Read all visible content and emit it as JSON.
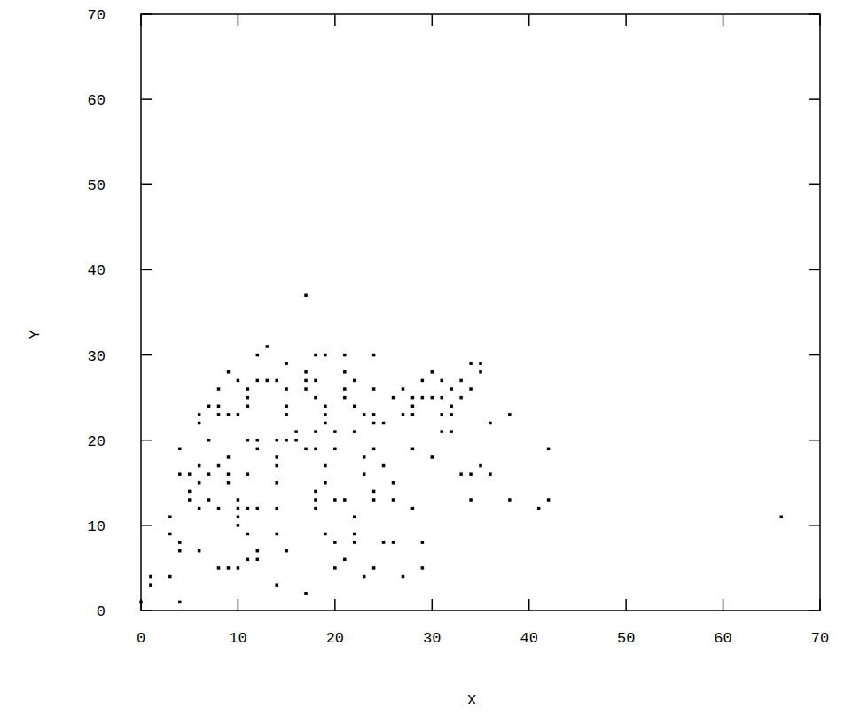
{
  "chart_data": {
    "type": "scatter",
    "xlabel": "X",
    "ylabel": "Y",
    "color": "#000000",
    "marker": "square",
    "x": [
      0,
      1,
      1,
      3,
      3,
      3,
      4,
      4,
      4,
      4,
      4,
      5,
      5,
      5,
      6,
      6,
      6,
      6,
      6,
      6,
      7,
      7,
      7,
      7,
      8,
      8,
      8,
      8,
      8,
      8,
      9,
      9,
      9,
      9,
      9,
      9,
      10,
      10,
      10,
      10,
      10,
      10,
      10,
      11,
      11,
      11,
      11,
      11,
      11,
      11,
      11,
      12,
      12,
      12,
      12,
      12,
      12,
      12,
      13,
      13,
      14,
      14,
      14,
      14,
      14,
      14,
      14,
      14,
      15,
      15,
      15,
      15,
      15,
      15,
      16,
      16,
      17,
      17,
      17,
      17,
      17,
      17,
      18,
      18,
      18,
      18,
      18,
      18,
      18,
      18,
      19,
      19,
      19,
      19,
      19,
      19,
      19,
      20,
      20,
      20,
      20,
      20,
      21,
      21,
      21,
      21,
      21,
      21,
      22,
      22,
      22,
      22,
      22,
      22,
      23,
      23,
      23,
      23,
      24,
      24,
      24,
      24,
      24,
      24,
      24,
      24,
      25,
      25,
      25,
      26,
      26,
      26,
      26,
      27,
      27,
      27,
      28,
      28,
      28,
      28,
      28,
      29,
      29,
      29,
      29,
      30,
      30,
      30,
      31,
      31,
      31,
      31,
      32,
      32,
      32,
      32,
      33,
      33,
      33,
      34,
      34,
      34,
      34,
      35,
      35,
      35,
      36,
      36,
      38,
      38,
      41,
      42,
      42,
      66
    ],
    "values": [
      1,
      4,
      3,
      11,
      9,
      4,
      19,
      16,
      8,
      7,
      1,
      16,
      14,
      13,
      23,
      22,
      17,
      15,
      12,
      7,
      24,
      20,
      16,
      13,
      26,
      24,
      23,
      17,
      12,
      5,
      28,
      23,
      18,
      16,
      15,
      5,
      27,
      23,
      13,
      11,
      10,
      5,
      12,
      26,
      25,
      24,
      20,
      16,
      12,
      9,
      6,
      30,
      27,
      20,
      19,
      12,
      7,
      6,
      31,
      27,
      27,
      20,
      18,
      17,
      15,
      12,
      9,
      3,
      29,
      26,
      24,
      23,
      20,
      7,
      21,
      20,
      37,
      28,
      27,
      26,
      19,
      2,
      30,
      27,
      25,
      21,
      19,
      14,
      13,
      12,
      30,
      24,
      23,
      22,
      17,
      15,
      9,
      21,
      19,
      13,
      8,
      5,
      30,
      28,
      26,
      25,
      13,
      6,
      27,
      24,
      21,
      11,
      9,
      8,
      23,
      18,
      16,
      4,
      30,
      26,
      23,
      22,
      19,
      14,
      13,
      5,
      22,
      17,
      8,
      25,
      15,
      13,
      8,
      26,
      23,
      4,
      24,
      23,
      25,
      19,
      12,
      27,
      25,
      8,
      5,
      28,
      25,
      18,
      27,
      25,
      23,
      21,
      26,
      24,
      23,
      21,
      27,
      25,
      16,
      29,
      26,
      16,
      13,
      29,
      28,
      17,
      22,
      16,
      23,
      13,
      12,
      19,
      13,
      11
    ],
    "xlim": [
      0,
      70
    ],
    "ylim": [
      0,
      70
    ],
    "xticks": [
      0,
      10,
      20,
      30,
      40,
      50,
      60,
      70
    ],
    "yticks": [
      0,
      10,
      20,
      30,
      40,
      50,
      60,
      70
    ]
  }
}
